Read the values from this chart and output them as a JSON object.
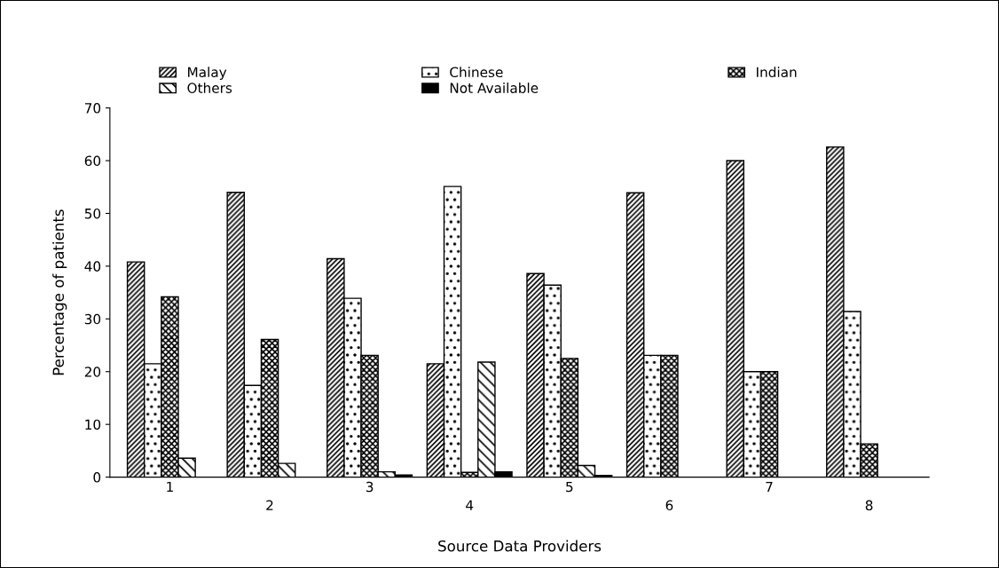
{
  "chart_data": {
    "type": "bar",
    "xlabel": "Source Data Providers",
    "ylabel": "Percentage of patients",
    "categories": [
      "1",
      "2",
      "3",
      "4",
      "5",
      "6",
      "7",
      "8"
    ],
    "series": [
      {
        "name": "Malay",
        "color": "#000000",
        "values": [
          40.8,
          54.0,
          41.4,
          21.5,
          38.6,
          53.9,
          60.0,
          62.6
        ]
      },
      {
        "name": "Chinese",
        "color": "#000000",
        "values": [
          21.5,
          17.4,
          33.9,
          55.1,
          36.4,
          23.1,
          20.0,
          31.4
        ]
      },
      {
        "name": "Indian",
        "color": "#000000",
        "values": [
          34.2,
          26.1,
          23.1,
          0.9,
          22.5,
          23.1,
          20.0,
          6.3
        ]
      },
      {
        "name": "Others",
        "color": "#000000",
        "values": [
          3.6,
          2.6,
          1.0,
          21.8,
          2.2,
          null,
          null,
          null
        ]
      },
      {
        "name": "Not Available",
        "color": "#000000",
        "values": [
          null,
          null,
          0.4,
          1.0,
          0.3,
          null,
          null,
          null
        ]
      }
    ],
    "ylim": [
      0,
      70
    ],
    "yticks": [
      0,
      10,
      20,
      30,
      40,
      50,
      60,
      70
    ],
    "grid": false,
    "legend": "top"
  }
}
